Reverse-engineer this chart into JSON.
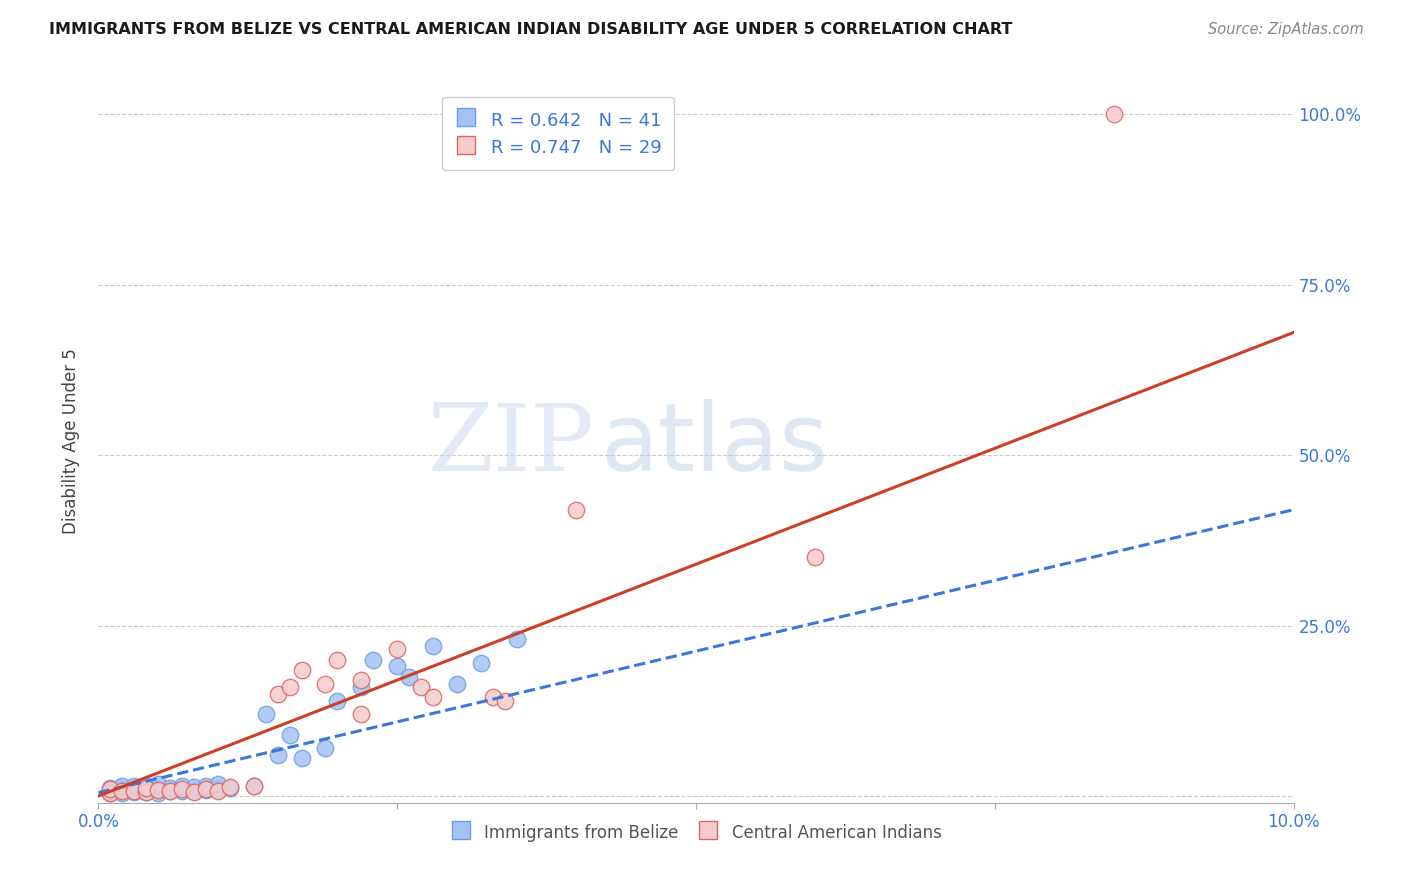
{
  "title": "IMMIGRANTS FROM BELIZE VS CENTRAL AMERICAN INDIAN DISABILITY AGE UNDER 5 CORRELATION CHART",
  "source": "Source: ZipAtlas.com",
  "ylabel": "Disability Age Under 5",
  "xlim": [
    0.0,
    0.1
  ],
  "ylim": [
    -0.01,
    1.05
  ],
  "yticks": [
    0.0,
    0.25,
    0.5,
    0.75,
    1.0
  ],
  "ytick_labels_right": [
    "",
    "25.0%",
    "50.0%",
    "75.0%",
    "100.0%"
  ],
  "xtick_positions": [
    0.0,
    0.025,
    0.05,
    0.075,
    0.1
  ],
  "xtick_labels": [
    "0.0%",
    "",
    "",
    "",
    "10.0%"
  ],
  "legend_r1": "R = 0.642",
  "legend_n1": "N = 41",
  "legend_r2": "R = 0.747",
  "legend_n2": "N = 29",
  "watermark_zip": "ZIP",
  "watermark_atlas": "atlas",
  "blue_color": "#a4c2f4",
  "pink_color": "#f4cccc",
  "blue_edge_color": "#6d9eeb",
  "pink_edge_color": "#e06666",
  "blue_line_color": "#3c78d8",
  "pink_line_color": "#cc4125",
  "blue_scatter_x": [
    0.001,
    0.001,
    0.001,
    0.002,
    0.002,
    0.002,
    0.003,
    0.003,
    0.003,
    0.004,
    0.004,
    0.004,
    0.005,
    0.005,
    0.005,
    0.006,
    0.006,
    0.007,
    0.007,
    0.008,
    0.008,
    0.009,
    0.009,
    0.01,
    0.01,
    0.011,
    0.013,
    0.014,
    0.015,
    0.016,
    0.017,
    0.019,
    0.02,
    0.022,
    0.023,
    0.025,
    0.026,
    0.028,
    0.03,
    0.032,
    0.035
  ],
  "blue_scatter_y": [
    0.005,
    0.008,
    0.012,
    0.005,
    0.01,
    0.015,
    0.006,
    0.01,
    0.014,
    0.006,
    0.009,
    0.015,
    0.005,
    0.01,
    0.018,
    0.008,
    0.012,
    0.007,
    0.014,
    0.008,
    0.013,
    0.009,
    0.015,
    0.01,
    0.018,
    0.012,
    0.015,
    0.12,
    0.06,
    0.09,
    0.055,
    0.07,
    0.14,
    0.16,
    0.2,
    0.19,
    0.175,
    0.22,
    0.165,
    0.195,
    0.23
  ],
  "pink_scatter_x": [
    0.001,
    0.001,
    0.002,
    0.003,
    0.004,
    0.004,
    0.005,
    0.006,
    0.007,
    0.008,
    0.009,
    0.01,
    0.011,
    0.013,
    0.015,
    0.016,
    0.017,
    0.019,
    0.02,
    0.022,
    0.022,
    0.025,
    0.027,
    0.028,
    0.033,
    0.034,
    0.04,
    0.06,
    0.085
  ],
  "pink_scatter_y": [
    0.005,
    0.01,
    0.007,
    0.008,
    0.006,
    0.012,
    0.009,
    0.007,
    0.01,
    0.006,
    0.01,
    0.008,
    0.013,
    0.015,
    0.15,
    0.16,
    0.185,
    0.165,
    0.2,
    0.12,
    0.17,
    0.215,
    0.16,
    0.145,
    0.145,
    0.14,
    0.42,
    0.35,
    1.0
  ],
  "blue_trendline_x": [
    0.0,
    0.1
  ],
  "blue_trendline_y": [
    0.005,
    0.42
  ],
  "pink_trendline_x": [
    0.0,
    0.1
  ],
  "pink_trendline_y": [
    0.0,
    0.68
  ]
}
